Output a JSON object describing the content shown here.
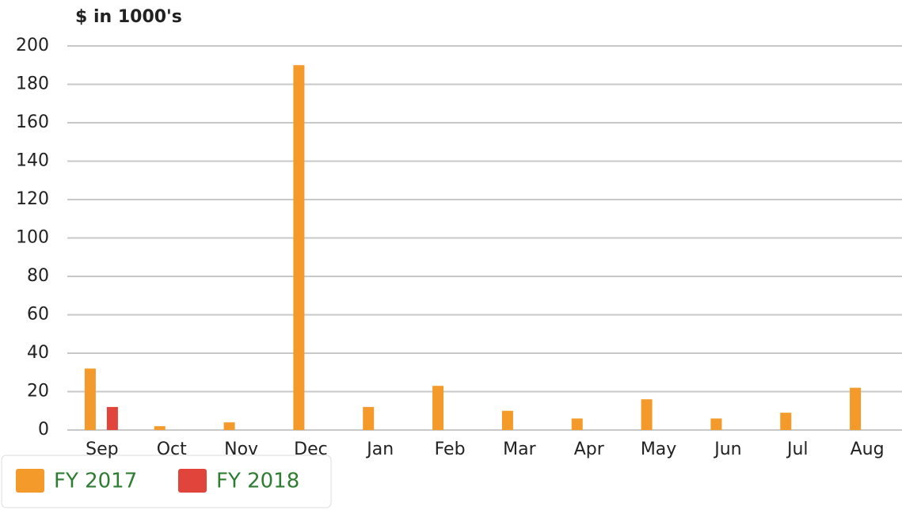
{
  "chart_data": {
    "type": "bar",
    "subtitle": "$ in 1000's",
    "categories": [
      "Sep",
      "Oct",
      "Nov",
      "Dec",
      "Jan",
      "Feb",
      "Mar",
      "Apr",
      "May",
      "Jun",
      "Jul",
      "Aug"
    ],
    "series": [
      {
        "name": "FY 2017",
        "color": "#f39a2a",
        "values": [
          32,
          2,
          4,
          190,
          12,
          23,
          10,
          6,
          16,
          6,
          9,
          22
        ]
      },
      {
        "name": "FY 2018",
        "color": "#e0443a",
        "values": [
          12,
          null,
          null,
          null,
          null,
          null,
          null,
          null,
          null,
          null,
          null,
          null
        ]
      }
    ],
    "ylim": [
      0,
      200
    ],
    "yticks": [
      0,
      20,
      40,
      60,
      80,
      100,
      120,
      140,
      160,
      180,
      200
    ],
    "grid": true,
    "legend": "bottom-left"
  }
}
